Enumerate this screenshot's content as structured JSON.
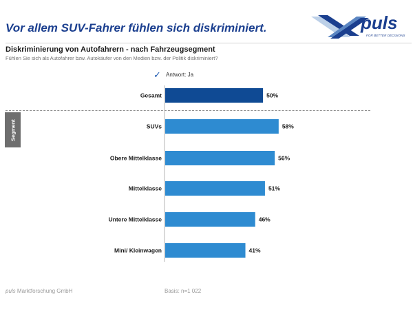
{
  "header": {
    "headline": "Vor allem SUV-Fahrer fühlen sich diskriminiert.",
    "logo_text": "puls",
    "logo_tagline": "FOR BETTER DECISIONS"
  },
  "colors": {
    "headline": "#1b3f8f",
    "bar_total": "#0f4a94",
    "bar_segment": "#2e8bd1"
  },
  "legend": {
    "icon": "check-icon",
    "label": "Antwort: Ja"
  },
  "segment_tab": {
    "label": "Segment"
  },
  "footer": {
    "company_brand": "puls",
    "company_rest": " Marktforschung GmbH",
    "basis": "Basis: n=1 022"
  },
  "chart_data": {
    "type": "bar",
    "orientation": "horizontal",
    "title": "Diskriminierung von Autofahrern - nach Fahrzeugsegment",
    "subtitle": "Fühlen Sie sich als Autofahrer bzw. Autokäufer von den Medien bzw. der Politik diskriminiert?",
    "categories": [
      "Gesamt",
      "SUVs",
      "Obere Mittelklasse",
      "Mittelklasse",
      "Untere Mittelklasse",
      "Mini/ Kleinwagen"
    ],
    "values": [
      50,
      58,
      56,
      51,
      46,
      41
    ],
    "value_labels": [
      "50%",
      "58%",
      "56%",
      "51%",
      "46%",
      "41%"
    ],
    "groups": [
      "total",
      "segment",
      "segment",
      "segment",
      "segment",
      "segment"
    ],
    "unit": "%",
    "xlim": [
      0,
      100
    ]
  }
}
